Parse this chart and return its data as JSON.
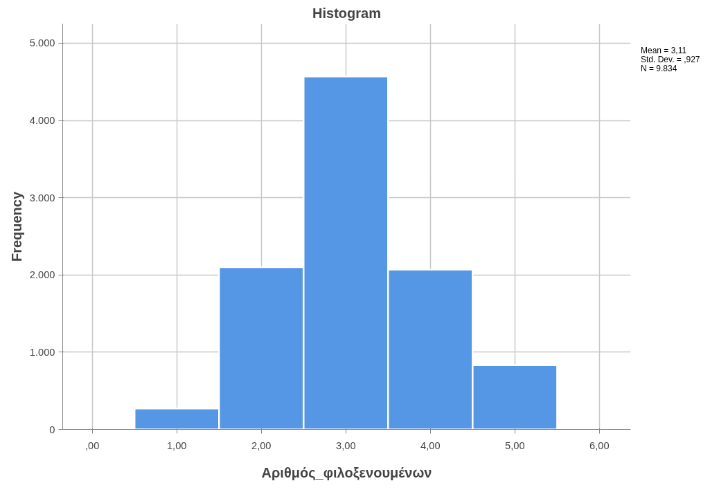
{
  "chart_data": {
    "type": "histogram",
    "title": "Histogram",
    "xlabel": "Αριθμός_φιλοξενουμένων",
    "ylabel": "Frequency",
    "bins": [
      0.5,
      1.5,
      2.5,
      3.5,
      4.5,
      5.5
    ],
    "values": [
      270,
      2100,
      4570,
      2070,
      830
    ],
    "color": "#5596e5",
    "xlim": [
      -0.35,
      6.37
    ],
    "xticks": [
      {
        "value": 0,
        "label": ",00"
      },
      {
        "value": 1,
        "label": "1,00"
      },
      {
        "value": 2,
        "label": "2,00"
      },
      {
        "value": 3,
        "label": "3,00"
      },
      {
        "value": 4,
        "label": "4,00"
      },
      {
        "value": 5,
        "label": "5,00"
      },
      {
        "value": 6,
        "label": "6,00"
      }
    ],
    "ylim": [
      0,
      5250
    ],
    "yticks": [
      {
        "value": 0,
        "label": "0"
      },
      {
        "value": 1000,
        "label": "1.000"
      },
      {
        "value": 2000,
        "label": "2.000"
      },
      {
        "value": 3000,
        "label": "3.000"
      },
      {
        "value": 4000,
        "label": "4.000"
      },
      {
        "value": 5000,
        "label": "5.000"
      }
    ],
    "grid": true,
    "annotations": [
      "Mean = 3,11",
      "Std. Dev. = ,927",
      "N = 9.834"
    ]
  }
}
